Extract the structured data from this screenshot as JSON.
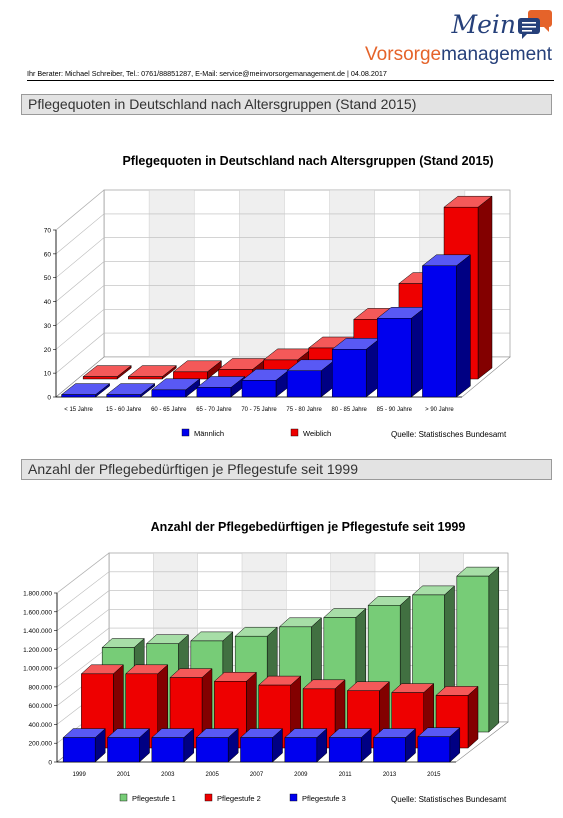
{
  "logo": {
    "line1": "Mein",
    "line2_a": "Vorsorge",
    "line2_b": "management",
    "accent_orange": "#e5632a",
    "accent_blue": "#26407a"
  },
  "adviser_line": "Ihr Berater: Michael Schreiber, Tel.: 0761/88851287, E-Mail: service@meinvorsorgemanagement.de | 04.08.2017",
  "section1": {
    "title": "Pflegequoten in Deutschland nach Altersgruppen (Stand 2015)"
  },
  "section2": {
    "title": "Anzahl der Pflegebedürftigen je Pflegestufe seit 1999"
  },
  "chart_data": [
    {
      "type": "bar",
      "title": "Pflegequoten in Deutschland nach Altersgruppen (Stand 2015)",
      "categories": [
        "< 15 Jahre",
        "15 - 60 Jahre",
        "60 - 65 Jahre",
        "65 - 70 Jahre",
        "70 - 75 Jahre",
        "75 - 80 Jahre",
        "80 - 85 Jahre",
        "85 - 90 Jahre",
        "> 90 Jahre"
      ],
      "series": [
        {
          "name": "Männlich",
          "color": "#0000ee",
          "values": [
            1,
            1,
            3,
            4,
            7,
            11,
            20,
            33,
            55
          ]
        },
        {
          "name": "Weiblich",
          "color": "#ee0000",
          "values": [
            1,
            1,
            3,
            4,
            8,
            13,
            25,
            40,
            72
          ]
        }
      ],
      "yticks": [
        "0",
        "10",
        "20",
        "30",
        "40",
        "50",
        "60",
        "70"
      ],
      "ylim": [
        0,
        70
      ],
      "source": "Quelle: Statistisches Bundesamt",
      "grid": true,
      "legend": "bottom"
    },
    {
      "type": "bar",
      "title": "Anzahl der Pflegebedürftigen je Pflegestufe seit 1999",
      "categories": [
        "1999",
        "2001",
        "2003",
        "2005",
        "2007",
        "2009",
        "2011",
        "2013",
        "2015"
      ],
      "series": [
        {
          "name": "Pflegestufe 3",
          "color": "#0000ee",
          "values": [
            260000,
            260000,
            260000,
            260000,
            260000,
            260000,
            260000,
            260000,
            270000
          ]
        },
        {
          "name": "Pflegestufe 2",
          "color": "#ee0000",
          "values": [
            790000,
            790000,
            750000,
            710000,
            670000,
            630000,
            610000,
            590000,
            560000
          ]
        },
        {
          "name": "Pflegestufe 1",
          "color": "#77cc77",
          "values": [
            900000,
            940000,
            970000,
            1020000,
            1120000,
            1220000,
            1350000,
            1460000,
            1660000
          ]
        }
      ],
      "yticks": [
        "0",
        "200.000",
        "400.000",
        "600.000",
        "800.000",
        "1.000.000",
        "1.200.000",
        "1.400.000",
        "1.600.000",
        "1.800.000"
      ],
      "ylim": [
        0,
        1800000
      ],
      "source": "Quelle: Statistisches Bundesamt",
      "legend_order": [
        "Pflegestufe 1",
        "Pflegestufe 2",
        "Pflegestufe 3"
      ],
      "grid": true,
      "legend": "bottom"
    }
  ]
}
